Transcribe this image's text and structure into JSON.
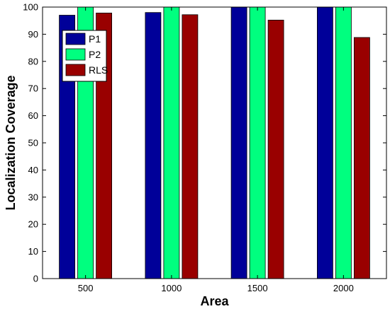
{
  "chart_data": {
    "type": "bar",
    "categories": [
      "500",
      "1000",
      "1500",
      "2000"
    ],
    "series": [
      {
        "name": "P1",
        "values": [
          97,
          98,
          100,
          100
        ]
      },
      {
        "name": "P2",
        "values": [
          100,
          100,
          100,
          100
        ]
      },
      {
        "name": "RLS",
        "values": [
          97.8,
          97.2,
          95.2,
          88.8
        ]
      }
    ],
    "xlabel": "Area",
    "ylabel": "Localization Coverage",
    "ylim": [
      0,
      100
    ],
    "yticks": [
      0,
      10,
      20,
      30,
      40,
      50,
      60,
      70,
      80,
      90,
      100
    ],
    "grid": false,
    "legend_position": "top-left",
    "colors": {
      "P1": "#000099",
      "P2": "#00ff7f",
      "RLS": "#990000"
    }
  }
}
